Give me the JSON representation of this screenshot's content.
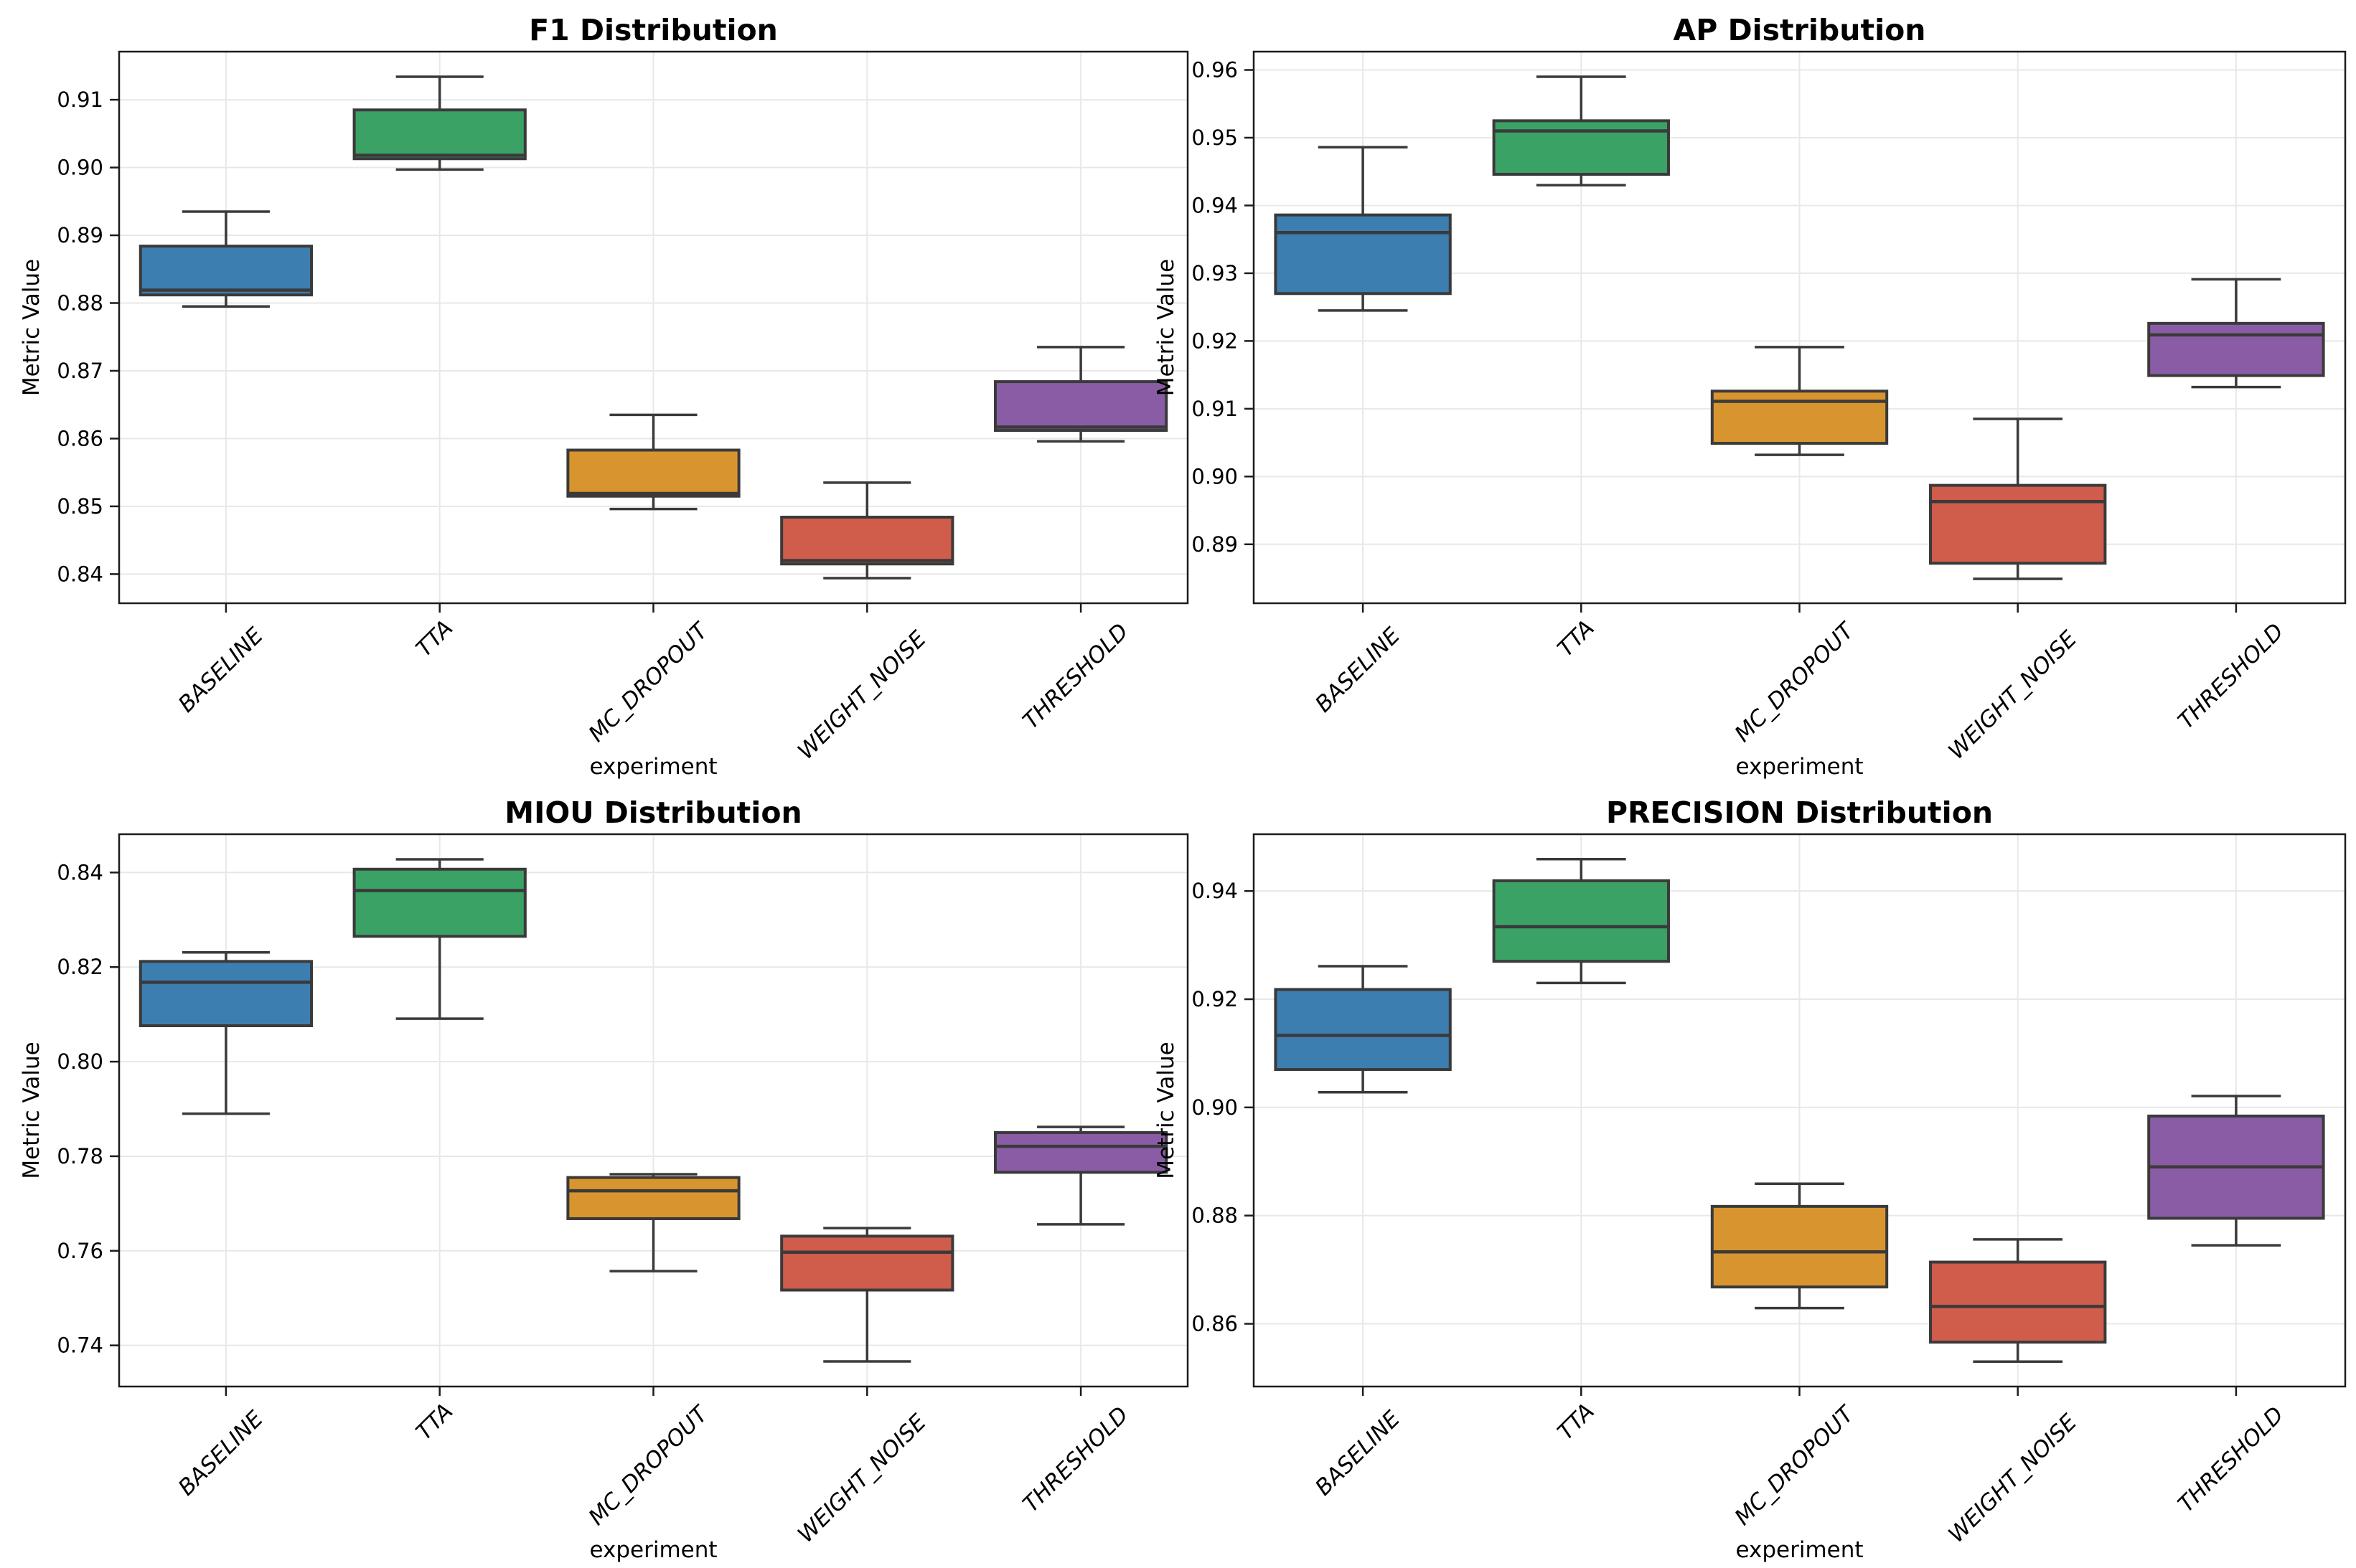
{
  "figure": {
    "background": "#ffffff",
    "grid_color": "#e8e8e8",
    "spine_color": "#1c1c1c",
    "box_edge_color": "#3a3a3a",
    "text_color": "#000000",
    "palette": {
      "BASELINE": "#3d7eb1",
      "TTA": "#3aa264",
      "MC_DROPOUT": "#d8952f",
      "WEIGHT_NOISE": "#d05c4b",
      "THRESHOLD": "#8a5ca6"
    }
  },
  "chart_data": [
    {
      "type": "boxplot",
      "title": "F1 Distribution",
      "xlabel": "experiment",
      "ylabel": "Metric Value",
      "categories": [
        "BASELINE",
        "TTA",
        "MC_DROPOUT",
        "WEIGHT_NOISE",
        "THRESHOLD"
      ],
      "ylim": [
        0.8357,
        0.9171
      ],
      "yticks": [
        0.84,
        0.85,
        0.86,
        0.87,
        0.88,
        0.89,
        0.9,
        0.91
      ],
      "ytick_labels": [
        "0.84",
        "0.85",
        "0.86",
        "0.87",
        "0.88",
        "0.89",
        "0.90",
        "0.91"
      ],
      "grid": true,
      "boxes": [
        {
          "category": "BASELINE",
          "whislo": 0.8795,
          "q1": 0.8812,
          "med": 0.8819,
          "q3": 0.8884,
          "whishi": 0.8935,
          "color": "#3d7eb1"
        },
        {
          "category": "TTA",
          "whislo": 0.8997,
          "q1": 0.9013,
          "med": 0.9018,
          "q3": 0.9085,
          "whishi": 0.9134,
          "color": "#3aa264"
        },
        {
          "category": "MC_DROPOUT",
          "whislo": 0.8496,
          "q1": 0.8515,
          "med": 0.8519,
          "q3": 0.8583,
          "whishi": 0.8635,
          "color": "#d8952f"
        },
        {
          "category": "WEIGHT_NOISE",
          "whislo": 0.8394,
          "q1": 0.8415,
          "med": 0.842,
          "q3": 0.8484,
          "whishi": 0.8535,
          "color": "#d05c4b"
        },
        {
          "category": "THRESHOLD",
          "whislo": 0.8596,
          "q1": 0.8612,
          "med": 0.8617,
          "q3": 0.8684,
          "whishi": 0.8735,
          "color": "#8a5ca6"
        }
      ]
    },
    {
      "type": "boxplot",
      "title": "AP Distribution",
      "xlabel": "experiment",
      "ylabel": "Metric Value",
      "categories": [
        "BASELINE",
        "TTA",
        "MC_DROPOUT",
        "WEIGHT_NOISE",
        "THRESHOLD"
      ],
      "ylim": [
        0.8813,
        0.9627
      ],
      "yticks": [
        0.89,
        0.9,
        0.91,
        0.92,
        0.93,
        0.94,
        0.95,
        0.96
      ],
      "ytick_labels": [
        "0.89",
        "0.90",
        "0.91",
        "0.92",
        "0.93",
        "0.94",
        "0.95",
        "0.96"
      ],
      "grid": true,
      "boxes": [
        {
          "category": "BASELINE",
          "whislo": 0.9245,
          "q1": 0.927,
          "med": 0.936,
          "q3": 0.9386,
          "whishi": 0.9486,
          "color": "#3d7eb1"
        },
        {
          "category": "TTA",
          "whislo": 0.943,
          "q1": 0.9446,
          "med": 0.951,
          "q3": 0.9525,
          "whishi": 0.959,
          "color": "#3aa264"
        },
        {
          "category": "MC_DROPOUT",
          "whislo": 0.9032,
          "q1": 0.9049,
          "med": 0.9111,
          "q3": 0.9126,
          "whishi": 0.9191,
          "color": "#d8952f"
        },
        {
          "category": "WEIGHT_NOISE",
          "whislo": 0.8849,
          "q1": 0.8872,
          "med": 0.8963,
          "q3": 0.8987,
          "whishi": 0.9085,
          "color": "#d05c4b"
        },
        {
          "category": "THRESHOLD",
          "whislo": 0.9132,
          "q1": 0.9149,
          "med": 0.9209,
          "q3": 0.9226,
          "whishi": 0.9291,
          "color": "#8a5ca6"
        }
      ]
    },
    {
      "type": "boxplot",
      "title": "MIOU Distribution",
      "xlabel": "experiment",
      "ylabel": "Metric Value",
      "categories": [
        "BASELINE",
        "TTA",
        "MC_DROPOUT",
        "WEIGHT_NOISE",
        "THRESHOLD"
      ],
      "ylim": [
        0.7313,
        0.8481
      ],
      "yticks": [
        0.74,
        0.76,
        0.78,
        0.8,
        0.82,
        0.84
      ],
      "ytick_labels": [
        "0.74",
        "0.76",
        "0.78",
        "0.80",
        "0.82",
        "0.84"
      ],
      "grid": true,
      "boxes": [
        {
          "category": "BASELINE",
          "whislo": 0.789,
          "q1": 0.8076,
          "med": 0.8168,
          "q3": 0.8212,
          "whishi": 0.8231,
          "color": "#3d7eb1"
        },
        {
          "category": "TTA",
          "whislo": 0.8091,
          "q1": 0.8265,
          "med": 0.8362,
          "q3": 0.8407,
          "whishi": 0.8428,
          "color": "#3aa264"
        },
        {
          "category": "MC_DROPOUT",
          "whislo": 0.7557,
          "q1": 0.7668,
          "med": 0.7727,
          "q3": 0.7755,
          "whishi": 0.7762,
          "color": "#d8952f"
        },
        {
          "category": "WEIGHT_NOISE",
          "whislo": 0.7366,
          "q1": 0.7517,
          "med": 0.7597,
          "q3": 0.7631,
          "whishi": 0.7648,
          "color": "#d05c4b"
        },
        {
          "category": "THRESHOLD",
          "whislo": 0.7656,
          "q1": 0.7766,
          "med": 0.7821,
          "q3": 0.785,
          "whishi": 0.7862,
          "color": "#8a5ca6"
        }
      ]
    },
    {
      "type": "boxplot",
      "title": "PRECISION Distribution",
      "xlabel": "experiment",
      "ylabel": "Metric Value",
      "categories": [
        "BASELINE",
        "TTA",
        "MC_DROPOUT",
        "WEIGHT_NOISE",
        "THRESHOLD"
      ],
      "ylim": [
        0.8484,
        0.9505
      ],
      "yticks": [
        0.86,
        0.88,
        0.9,
        0.92,
        0.94
      ],
      "ytick_labels": [
        "0.86",
        "0.88",
        "0.90",
        "0.92",
        "0.94"
      ],
      "grid": true,
      "boxes": [
        {
          "category": "BASELINE",
          "whislo": 0.9028,
          "q1": 0.907,
          "med": 0.9133,
          "q3": 0.9218,
          "whishi": 0.9261,
          "color": "#3d7eb1"
        },
        {
          "category": "TTA",
          "whislo": 0.923,
          "q1": 0.927,
          "med": 0.9334,
          "q3": 0.9419,
          "whishi": 0.9459,
          "color": "#3aa264"
        },
        {
          "category": "MC_DROPOUT",
          "whislo": 0.8629,
          "q1": 0.8668,
          "med": 0.8733,
          "q3": 0.8817,
          "whishi": 0.8859,
          "color": "#d8952f"
        },
        {
          "category": "WEIGHT_NOISE",
          "whislo": 0.853,
          "q1": 0.8566,
          "med": 0.8632,
          "q3": 0.8714,
          "whishi": 0.8756,
          "color": "#d05c4b"
        },
        {
          "category": "THRESHOLD",
          "whislo": 0.8745,
          "q1": 0.8795,
          "med": 0.889,
          "q3": 0.8984,
          "whishi": 0.9021,
          "color": "#8a5ca6"
        }
      ]
    }
  ]
}
